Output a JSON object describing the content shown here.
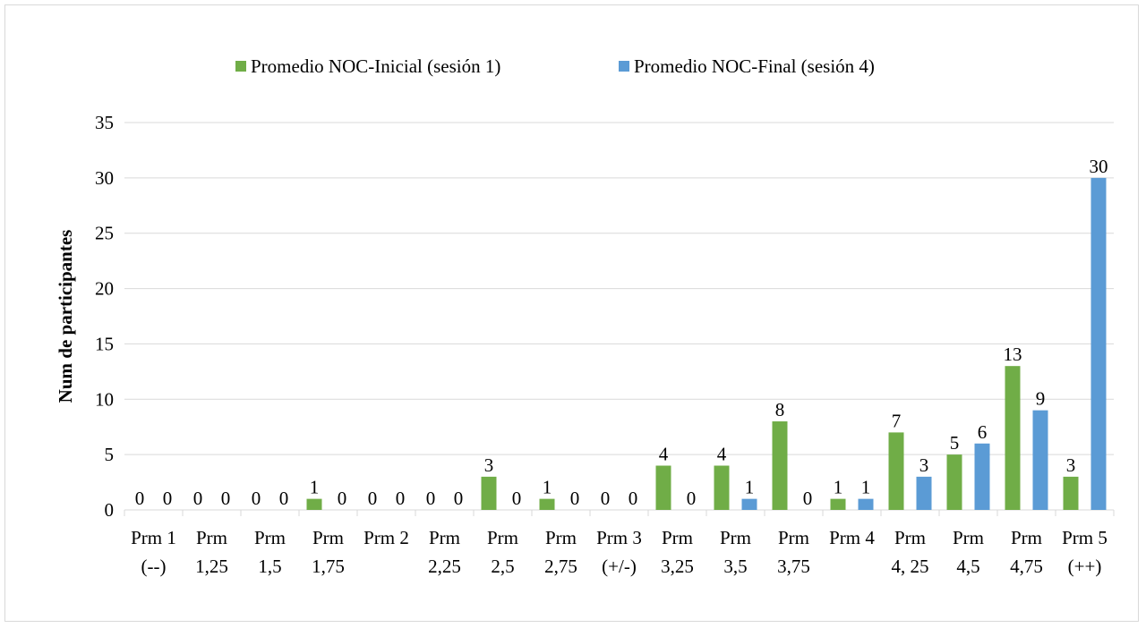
{
  "chart_data": {
    "type": "bar",
    "categories": [
      [
        "Prm 1",
        "(--)"
      ],
      [
        "Prm",
        "1,25"
      ],
      [
        "Prm",
        "1,5"
      ],
      [
        "Prm",
        "1,75"
      ],
      [
        "Prm 2",
        ""
      ],
      [
        "Prm",
        "2,25"
      ],
      [
        "Prm",
        "2,5"
      ],
      [
        "Prm",
        "2,75"
      ],
      [
        "Prm 3",
        "(+/-)"
      ],
      [
        "Prm",
        "3,25"
      ],
      [
        "Prm",
        "3,5"
      ],
      [
        "Prm",
        "3,75"
      ],
      [
        "Prm 4",
        ""
      ],
      [
        "Prm",
        "4, 25"
      ],
      [
        "Prm",
        "4,5"
      ],
      [
        "Prm",
        "4,75"
      ],
      [
        "Prm 5",
        "(++)"
      ]
    ],
    "series": [
      {
        "name": "Promedio NOC-Inicial (sesión 1)",
        "color": "#70ad47",
        "values": [
          0,
          0,
          0,
          1,
          0,
          0,
          3,
          1,
          0,
          4,
          4,
          8,
          1,
          7,
          5,
          13,
          3
        ]
      },
      {
        "name": "Promedio NOC-Final (sesión 4)",
        "color": "#5b9bd5",
        "values": [
          0,
          0,
          0,
          0,
          0,
          0,
          0,
          0,
          0,
          0,
          1,
          0,
          1,
          3,
          6,
          9,
          30
        ]
      }
    ],
    "xlabel": "",
    "ylabel": "Num de participantes",
    "ylim": [
      0,
      35
    ],
    "yticks": [
      0,
      5,
      10,
      15,
      20,
      25,
      30,
      35
    ],
    "grid": true,
    "legend_position": "top",
    "data_labels": true
  }
}
